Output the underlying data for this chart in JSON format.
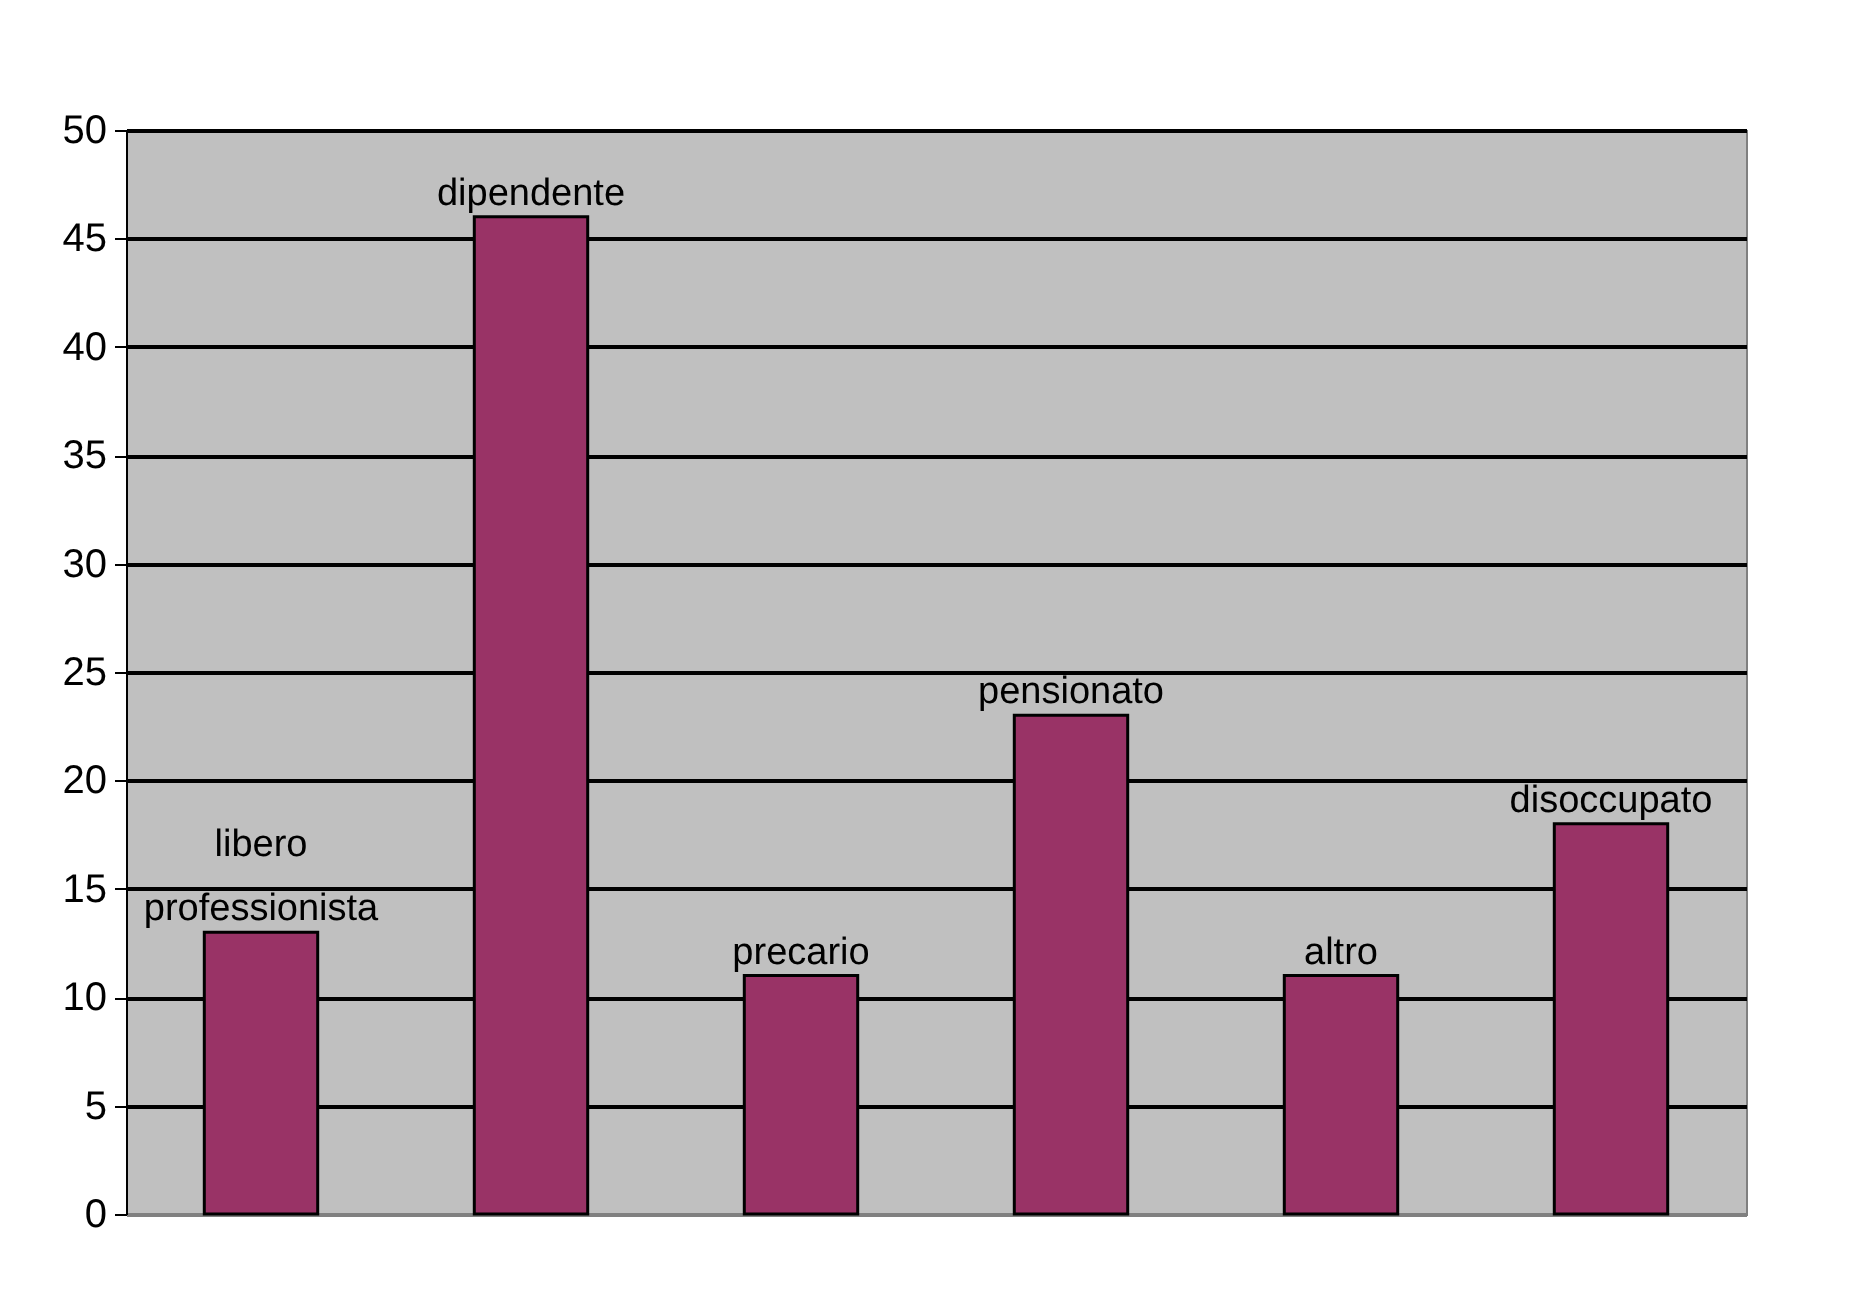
{
  "chart_data": {
    "type": "bar",
    "categories": [
      "libero professionista",
      "dipendente",
      "precario",
      "pensionato",
      "altro",
      "disoccupato"
    ],
    "values": [
      13,
      46,
      11,
      23,
      11,
      18
    ],
    "color": "#993366",
    "ylim": [
      0,
      50
    ],
    "yticks": [
      0,
      5,
      10,
      15,
      20,
      25,
      30,
      35,
      40,
      45,
      50
    ],
    "grid": "y",
    "tick_labels": "y"
  }
}
